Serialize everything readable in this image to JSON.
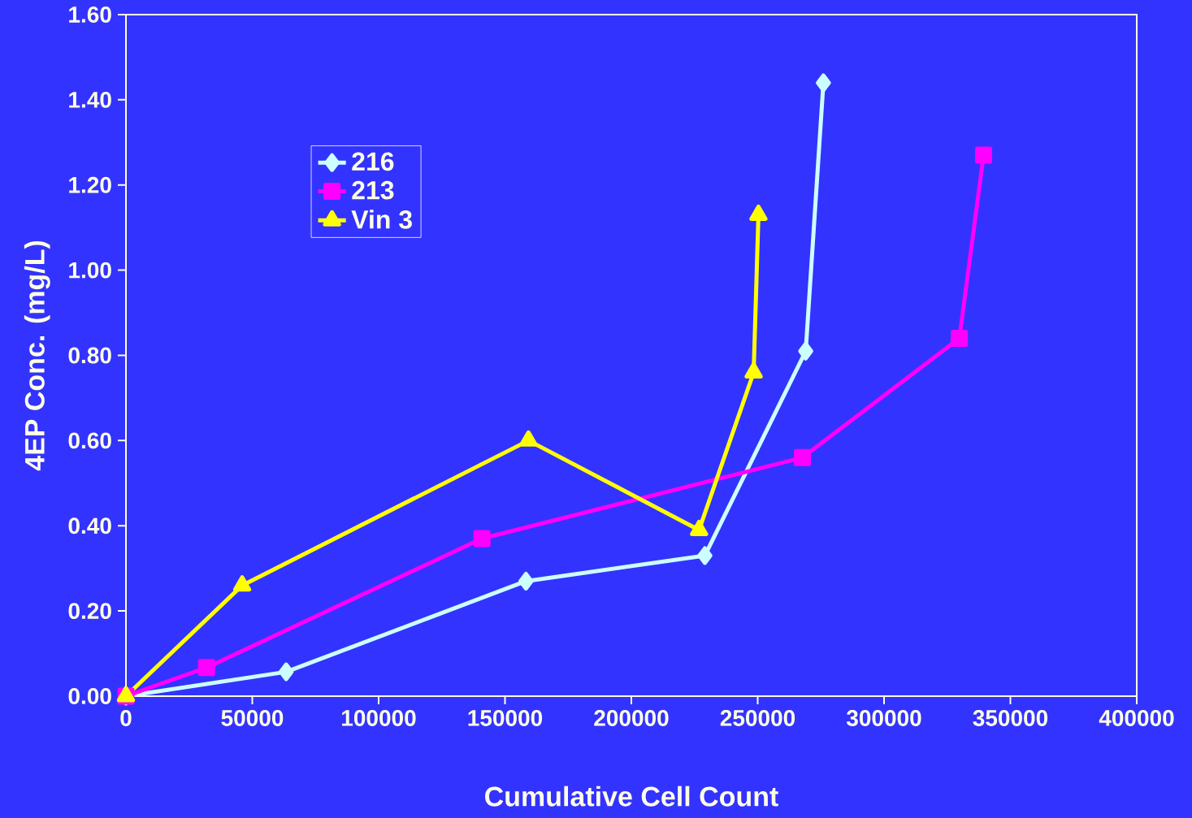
{
  "chart_data": {
    "type": "line",
    "xlabel": "Cumulative Cell Count",
    "ylabel": "4EP Conc. (mg/L)",
    "xlim": [
      0,
      400000
    ],
    "ylim": [
      0,
      1.6
    ],
    "xticks": [
      0,
      50000,
      100000,
      150000,
      200000,
      250000,
      300000,
      350000,
      400000
    ],
    "yticks": [
      {
        "value": 0,
        "label": "0.00"
      },
      {
        "value": 0.2,
        "label": "0.20"
      },
      {
        "value": 0.4,
        "label": "0.40"
      },
      {
        "value": 0.6,
        "label": "0.60"
      },
      {
        "value": 0.8,
        "label": "0.80"
      },
      {
        "value": 1.0,
        "label": "1.00"
      },
      {
        "value": 1.2,
        "label": "1.20"
      },
      {
        "value": 1.4,
        "label": "1.40"
      },
      {
        "value": 1.6,
        "label": "1.60"
      }
    ],
    "grid": false,
    "legend": "top left",
    "line_style": "solid",
    "series": [
      {
        "name": "216",
        "color": "#ccffff",
        "marker": "diamond",
        "x": [
          0,
          63400,
          158300,
          229100,
          269000,
          276000
        ],
        "values": [
          0,
          0.057,
          0.27,
          0.33,
          0.81,
          1.44
        ]
      },
      {
        "name": "213",
        "color": "#ff00ff",
        "marker": "square",
        "x": [
          0,
          31900,
          140900,
          267700,
          329800,
          339400
        ],
        "values": [
          0,
          0.067,
          0.37,
          0.56,
          0.84,
          1.27
        ]
      },
      {
        "name": "Vin 3",
        "color": "#ffff00",
        "marker": "triangle",
        "x": [
          0,
          46000,
          159300,
          226800,
          248400,
          250300
        ],
        "values": [
          0,
          0.26,
          0.6,
          0.39,
          0.76,
          1.13
        ]
      }
    ]
  }
}
